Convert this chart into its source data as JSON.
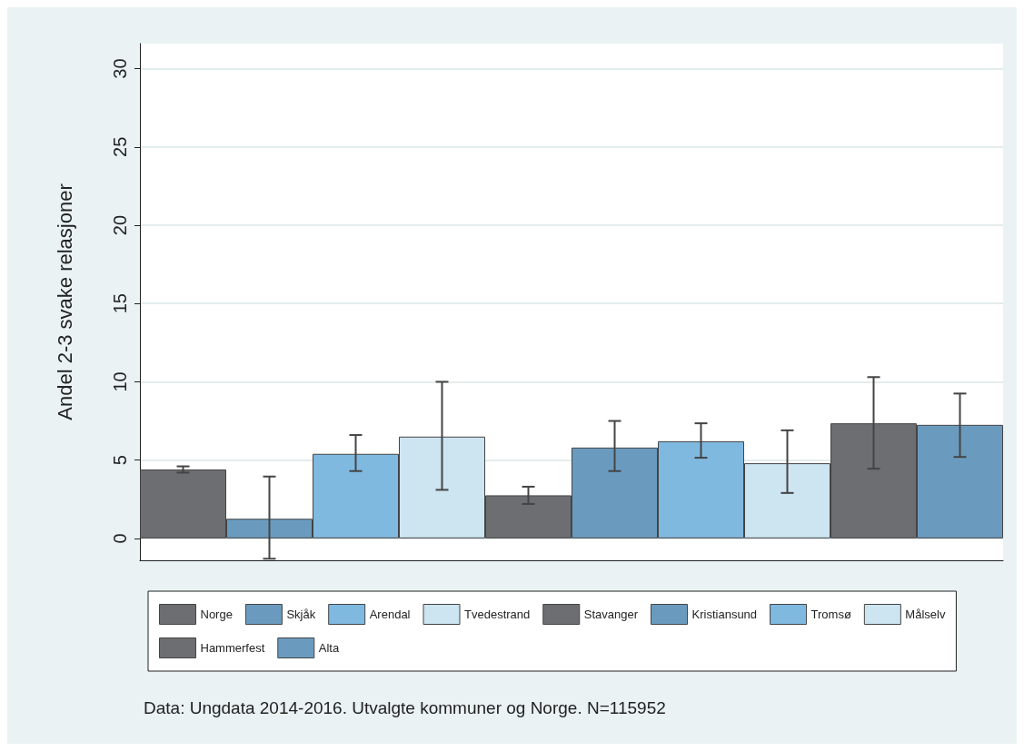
{
  "chart_data": {
    "type": "bar",
    "ylabel": "Andel 2-3 svake relasjoner",
    "categories": [
      null,
      null,
      null,
      null,
      null,
      null,
      null,
      null,
      null,
      null
    ],
    "series": [
      {
        "name": "Norge",
        "color": "#6d6e72",
        "values": [
          4.4,
          null,
          null,
          null,
          null,
          null,
          null,
          null,
          null,
          null
        ],
        "errors": [
          [
            4.2,
            4.6
          ],
          null,
          null,
          null,
          null,
          null,
          null,
          null,
          null,
          null
        ]
      },
      {
        "name": "Skjåk",
        "color": "#6a9bbf",
        "values": [
          null,
          1.25,
          null,
          null,
          null,
          null,
          null,
          null,
          null,
          null
        ],
        "errors": [
          null,
          [
            -1.3,
            3.95
          ],
          null,
          null,
          null,
          null,
          null,
          null,
          null,
          null
        ]
      },
      {
        "name": "Arendal",
        "color": "#80b9e0",
        "values": [
          null,
          null,
          5.4,
          null,
          null,
          null,
          null,
          null,
          null,
          null
        ],
        "errors": [
          null,
          null,
          [
            4.3,
            6.6
          ],
          null,
          null,
          null,
          null,
          null,
          null,
          null
        ]
      },
      {
        "name": "Tvedestrand",
        "color": "#cde4f1",
        "values": [
          null,
          null,
          null,
          6.5,
          null,
          null,
          null,
          null,
          null,
          null
        ],
        "errors": [
          null,
          null,
          null,
          [
            3.1,
            10
          ],
          null,
          null,
          null,
          null,
          null,
          null
        ]
      },
      {
        "name": "Stavanger",
        "color": "#6d6e72",
        "values": [
          null,
          null,
          null,
          null,
          2.75,
          null,
          null,
          null,
          null,
          null
        ],
        "errors": [
          null,
          null,
          null,
          null,
          [
            2.2,
            3.3
          ],
          null,
          null,
          null,
          null,
          null
        ]
      },
      {
        "name": "Kristiansund",
        "color": "#6a9bbf",
        "values": [
          null,
          null,
          null,
          null,
          null,
          5.8,
          null,
          null,
          null,
          null
        ],
        "errors": [
          null,
          null,
          null,
          null,
          null,
          [
            4.3,
            7.5
          ],
          null,
          null,
          null,
          null
        ]
      },
      {
        "name": "Tromsø",
        "color": "#80b9e0",
        "values": [
          null,
          null,
          null,
          null,
          null,
          null,
          6.2,
          null,
          null,
          null
        ],
        "errors": [
          null,
          null,
          null,
          null,
          null,
          null,
          [
            5.15,
            7.35
          ],
          null,
          null,
          null
        ]
      },
      {
        "name": "Målselv",
        "color": "#cde4f1",
        "values": [
          null,
          null,
          null,
          null,
          null,
          null,
          null,
          4.8,
          null,
          null
        ],
        "errors": [
          null,
          null,
          null,
          null,
          null,
          null,
          null,
          [
            2.9,
            6.9
          ],
          null,
          null
        ]
      },
      {
        "name": "Hammerfest",
        "color": "#6d6e72",
        "values": [
          null,
          null,
          null,
          null,
          null,
          null,
          null,
          null,
          7.35,
          null
        ],
        "errors": [
          null,
          null,
          null,
          null,
          null,
          null,
          null,
          null,
          [
            4.45,
            10.3
          ],
          null
        ]
      },
      {
        "name": "Alta",
        "color": "#6a9bbf",
        "values": [
          null,
          null,
          null,
          null,
          null,
          null,
          null,
          null,
          null,
          7.25
        ],
        "errors": [
          null,
          null,
          null,
          null,
          null,
          null,
          null,
          null,
          null,
          [
            5.2,
            9.25
          ]
        ]
      }
    ],
    "ylim": [
      -1.4,
      31.6
    ],
    "yticks": [
      0,
      5,
      10,
      15,
      20,
      25,
      30
    ],
    "grid": "y",
    "legend": "bottom",
    "annotations": [
      "Data: Ungdata 2014-2016. Utvalgte kommuner og Norge. N=115952"
    ]
  }
}
